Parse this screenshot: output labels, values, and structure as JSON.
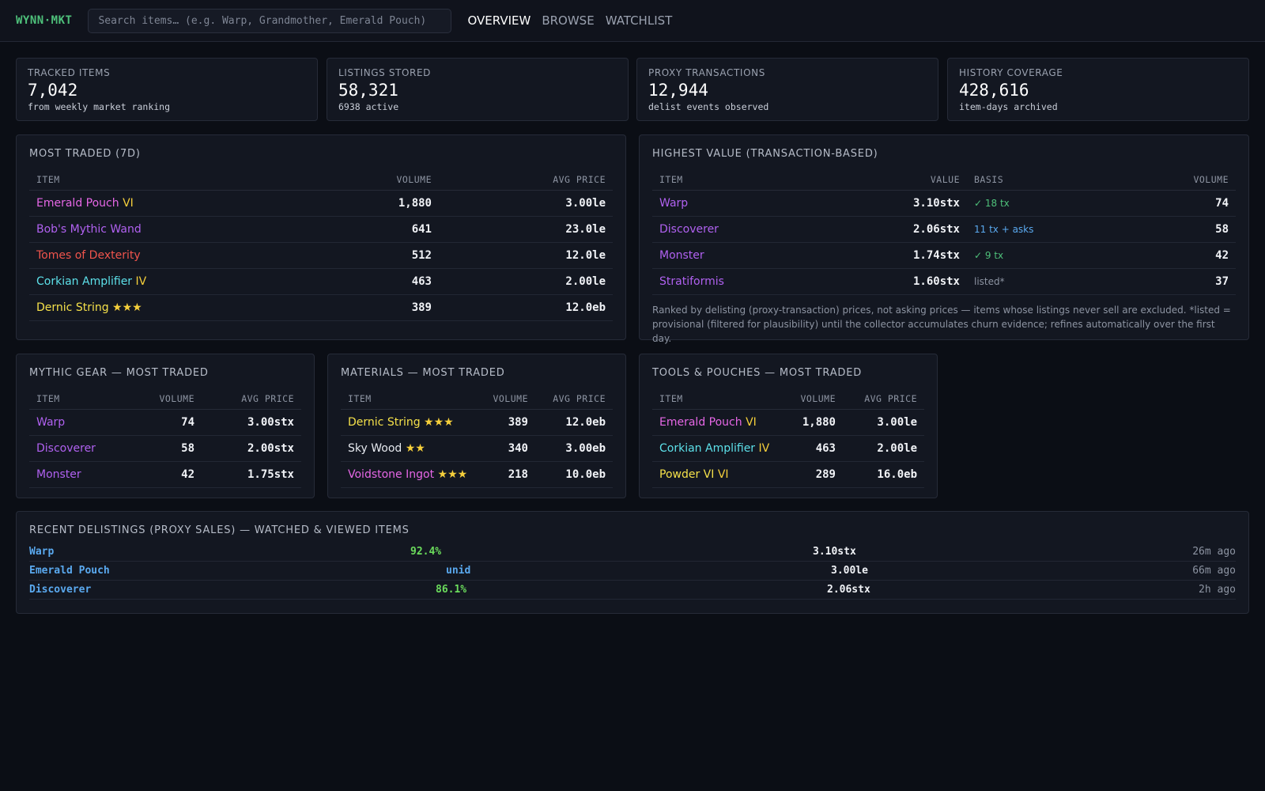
{
  "header": {
    "logo": "WYNN·MKT",
    "search_placeholder": "Search items… (e.g. Warp, Grandmother, Emerald Pouch)",
    "nav": [
      "OVERVIEW",
      "BROWSE",
      "WATCHLIST"
    ],
    "active_nav": "OVERVIEW"
  },
  "stats": [
    {
      "label": "TRACKED ITEMS",
      "value": "7,042",
      "sub": "from weekly market ranking"
    },
    {
      "label": "LISTINGS STORED",
      "value": "58,321",
      "sub": "6938 active"
    },
    {
      "label": "PROXY TRANSACTIONS",
      "value": "12,944",
      "sub": "delist events observed"
    },
    {
      "label": "HISTORY COVERAGE",
      "value": "428,616",
      "sub": "item-days archived"
    }
  ],
  "most_traded": {
    "title": "MOST TRADED (7D)",
    "columns": [
      "ITEM",
      "VOLUME",
      "AVG PRICE"
    ],
    "rows": [
      {
        "name": "Emerald Pouch",
        "suffix": " VI",
        "name_color": "#e667e6",
        "suffix_color": "#f5cf3b",
        "volume": "1,880",
        "price": "3.00le"
      },
      {
        "name": "Bob's Mythic Wand",
        "suffix": "",
        "name_color": "#b061f0",
        "suffix_color": "#f5cf3b",
        "volume": "641",
        "price": "23.0le"
      },
      {
        "name": "Tomes of Dexterity",
        "suffix": "",
        "name_color": "#f0544c",
        "suffix_color": "#f5cf3b",
        "volume": "512",
        "price": "12.0le"
      },
      {
        "name": "Corkian Amplifier",
        "suffix": " IV",
        "name_color": "#5de1ea",
        "suffix_color": "#f5cf3b",
        "volume": "463",
        "price": "2.00le"
      },
      {
        "name": "Dernic String",
        "suffix": " ★★★",
        "name_color": "#f5e14a",
        "suffix_color": "#f5cf3b",
        "volume": "389",
        "price": "12.0eb"
      }
    ]
  },
  "highest_value": {
    "title": "HIGHEST VALUE (TRANSACTION-BASED)",
    "columns": [
      "ITEM",
      "VALUE",
      "BASIS",
      "VOLUME"
    ],
    "rows": [
      {
        "name": "Warp",
        "name_color": "#b061f0",
        "value": "3.10stx",
        "basis": "✓ 18 tx",
        "basis_color": "#4ec07a",
        "volume": "74"
      },
      {
        "name": "Discoverer",
        "name_color": "#b061f0",
        "value": "2.06stx",
        "basis": "11 tx + asks",
        "basis_color": "#5aa9ef",
        "volume": "58"
      },
      {
        "name": "Monster",
        "name_color": "#b061f0",
        "value": "1.74stx",
        "basis": "✓ 9 tx",
        "basis_color": "#4ec07a",
        "volume": "42"
      },
      {
        "name": "Stratiformis",
        "name_color": "#b061f0",
        "value": "1.60stx",
        "basis": "listed*",
        "basis_color": "#8d94a2",
        "volume": "37"
      }
    ],
    "note": "Ranked by delisting (proxy-transaction) prices, not asking prices — items whose listings never sell are excluded. *listed = provisional (filtered for plausibility) until the collector accumulates churn evidence; refines automatically over the first day."
  },
  "mythic": {
    "title": "MYTHIC GEAR — MOST TRADED",
    "columns": [
      "ITEM",
      "VOLUME",
      "AVG PRICE"
    ],
    "rows": [
      {
        "name": "Warp",
        "suffix": "",
        "name_color": "#b061f0",
        "suffix_color": "#f5cf3b",
        "volume": "74",
        "price": "3.00stx"
      },
      {
        "name": "Discoverer",
        "suffix": "",
        "name_color": "#b061f0",
        "suffix_color": "#f5cf3b",
        "volume": "58",
        "price": "2.00stx"
      },
      {
        "name": "Monster",
        "suffix": "",
        "name_color": "#b061f0",
        "suffix_color": "#f5cf3b",
        "volume": "42",
        "price": "1.75stx"
      }
    ]
  },
  "materials": {
    "title": "MATERIALS — MOST TRADED",
    "columns": [
      "ITEM",
      "VOLUME",
      "AVG PRICE"
    ],
    "rows": [
      {
        "name": "Dernic String",
        "suffix": " ★★★",
        "name_color": "#f5e14a",
        "suffix_color": "#f5cf3b",
        "volume": "389",
        "price": "12.0eb"
      },
      {
        "name": "Sky Wood",
        "suffix": " ★★",
        "name_color": "#e6e9ef",
        "suffix_color": "#f5cf3b",
        "volume": "340",
        "price": "3.00eb"
      },
      {
        "name": "Voidstone Ingot",
        "suffix": " ★★★",
        "name_color": "#e667e6",
        "suffix_color": "#f5cf3b",
        "volume": "218",
        "price": "10.0eb"
      }
    ]
  },
  "tools": {
    "title": "TOOLS & POUCHES — MOST TRADED",
    "columns": [
      "ITEM",
      "VOLUME",
      "AVG PRICE"
    ],
    "rows": [
      {
        "name": "Emerald Pouch",
        "suffix": " VI",
        "name_color": "#e667e6",
        "suffix_color": "#f5cf3b",
        "volume": "1,880",
        "price": "3.00le"
      },
      {
        "name": "Corkian Amplifier",
        "suffix": " IV",
        "name_color": "#5de1ea",
        "suffix_color": "#f5cf3b",
        "volume": "463",
        "price": "2.00le"
      },
      {
        "name": "Powder VI",
        "suffix": " VI",
        "name_color": "#f5e14a",
        "suffix_color": "#f5cf3b",
        "volume": "289",
        "price": "16.0eb"
      }
    ]
  },
  "recent": {
    "title": "RECENT DELISTINGS (PROXY SALES) — WATCHED & VIEWED ITEMS",
    "rows": [
      {
        "name": "Warp",
        "mid": "92.4%",
        "mid_color": "#6bdc5c",
        "price": "3.10stx",
        "time": "26m ago"
      },
      {
        "name": "Emerald Pouch",
        "mid": "unid",
        "mid_color": "#5aa9ef",
        "price": "3.00le",
        "time": "66m ago"
      },
      {
        "name": "Discoverer",
        "mid": "86.1%",
        "mid_color": "#6bdc5c",
        "price": "2.06stx",
        "time": "2h ago"
      }
    ]
  }
}
